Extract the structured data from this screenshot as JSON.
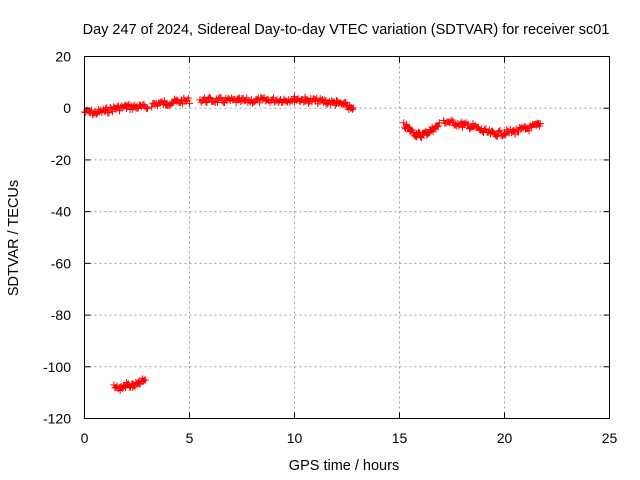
{
  "chart_data": {
    "type": "scatter",
    "title": "Day 247 of 2024, Sidereal Day-to-day VTEC variation (SDTVAR) for receiver sc01",
    "xlabel": "GPS time / hours",
    "ylabel": "SDTVAR / TECUs",
    "xlim": [
      0,
      25
    ],
    "ylim": [
      -120,
      20
    ],
    "x_ticks": [
      0,
      5,
      10,
      15,
      20,
      25
    ],
    "y_ticks": [
      20,
      0,
      -20,
      -40,
      -60,
      -80,
      -100,
      -120
    ],
    "grid": true,
    "marker": "plus",
    "color": "#ff0000",
    "series": [
      {
        "name": "SDTVAR",
        "segments": [
          {
            "x": [
              0.0,
              0.5,
              1.0,
              1.5,
              2.0,
              2.5,
              3.0
            ],
            "y": [
              -1.5,
              -1.8,
              -1.0,
              0.0,
              0.5,
              0.5,
              0.3
            ]
          },
          {
            "x": [
              3.2,
              3.8,
              4.4,
              5.0
            ],
            "y": [
              1.5,
              2.0,
              2.5,
              3.0
            ]
          },
          {
            "x": [
              5.5,
              6.5,
              7.5,
              8.5,
              9.5,
              10.0,
              10.5,
              11.0,
              11.5,
              12.0,
              12.5,
              12.8
            ],
            "y": [
              3.2,
              3.0,
              2.8,
              3.0,
              3.3,
              3.5,
              3.2,
              2.8,
              2.5,
              2.0,
              1.0,
              -1.0
            ]
          },
          {
            "x": [
              15.2,
              15.5,
              15.8,
              16.0,
              16.3,
              16.6,
              16.9
            ],
            "y": [
              -6.5,
              -8.5,
              -10.0,
              -10.5,
              -9.5,
              -8.0,
              -6.5
            ]
          },
          {
            "x": [
              17.1,
              17.5,
              18.0,
              18.5,
              19.0,
              19.5,
              20.0,
              20.5,
              21.0,
              21.5,
              21.7
            ],
            "y": [
              -5.0,
              -5.5,
              -6.5,
              -7.0,
              -9.0,
              -10.0,
              -9.5,
              -9.0,
              -8.0,
              -7.0,
              -6.0
            ]
          },
          {
            "x": [
              1.4,
              1.7,
              2.0,
              2.3,
              2.6,
              2.9
            ],
            "y": [
              -107.0,
              -108.5,
              -107.0,
              -107.5,
              -106.5,
              -105.0
            ]
          }
        ]
      }
    ]
  }
}
